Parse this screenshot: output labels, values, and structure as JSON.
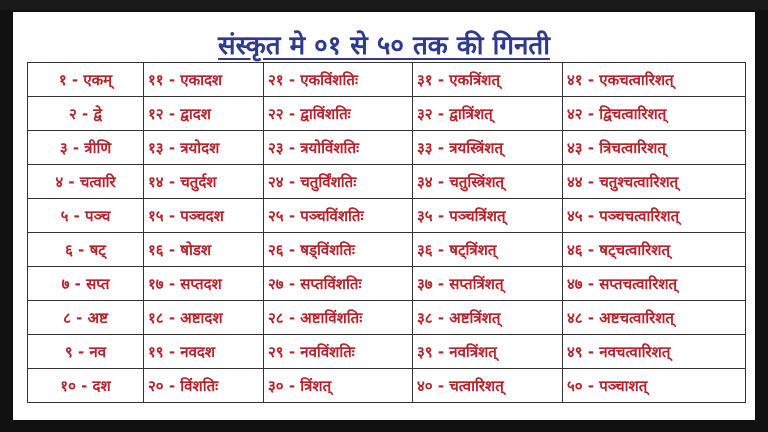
{
  "title": "संस्कृत मे ०१ से ५० तक की गिनती",
  "colors": {
    "title": "#2f3a8f",
    "text": "#b3242c",
    "border": "#333333"
  },
  "rows": [
    [
      "१ - एकम्",
      "११ - एकादश",
      "२१ - एकविंशतिः",
      "३१ - एकत्रिंशत्",
      "४१ - एकचत्वारिशत्"
    ],
    [
      "२ - द्वे",
      "१२ - द्वादश",
      "२२ - द्वाविंशतिः",
      "३२ - द्वात्रिंशत्",
      "४२ - द्विचत्वारिशत्"
    ],
    [
      "३ - त्रीणि",
      "१३ - त्रयोदश",
      "२३ - त्रयोविंशतिः",
      "३३ - त्रयस्त्रिंशत्",
      "४३ - त्रिचत्वारिशत्"
    ],
    [
      "४ - चत्वारि",
      "१४ - चतुर्दश",
      "२४ - चतुर्विंशतिः",
      "३४ - चतुस्त्रिंशत्",
      "४४ - चतुश्चत्वारिशत्"
    ],
    [
      "५ - पञ्च",
      "१५ - पञ्चदश",
      "२५ - पञ्चविंशतिः",
      "३५ - पञ्चत्रिंशत्",
      "४५ - पञ्चचत्वारिशत्"
    ],
    [
      "६ - षट्",
      "१६ - षोडश",
      "२६ - षड्विंशतिः",
      "३६ - षट्त्रिंशत्",
      "४६ - षट्चत्वारिशत्"
    ],
    [
      "७ - सप्त",
      "१७ - सप्तदश",
      "२७ - सप्तविंशतिः",
      "३७ - सप्तत्रिंशत्",
      "४७ - सप्तचत्वारिशत्"
    ],
    [
      "८ - अष्ट",
      "१८ - अष्टादश",
      "२८ - अष्टाविंशतिः",
      "३८ - अष्टत्रिंशत्",
      "४८ - अष्टचत्वारिशत्"
    ],
    [
      "९ - नव",
      "१९ - नवदश",
      "२९ - नवविंशतिः",
      "३९ - नवत्रिंशत्",
      "४९ - नवचत्वारिशत्"
    ],
    [
      "१० - दश",
      "२० - विंशतिः",
      "३० - त्रिंशत्",
      "४० - चत्वारिशत्",
      "५० - पञ्चाशत्"
    ]
  ]
}
